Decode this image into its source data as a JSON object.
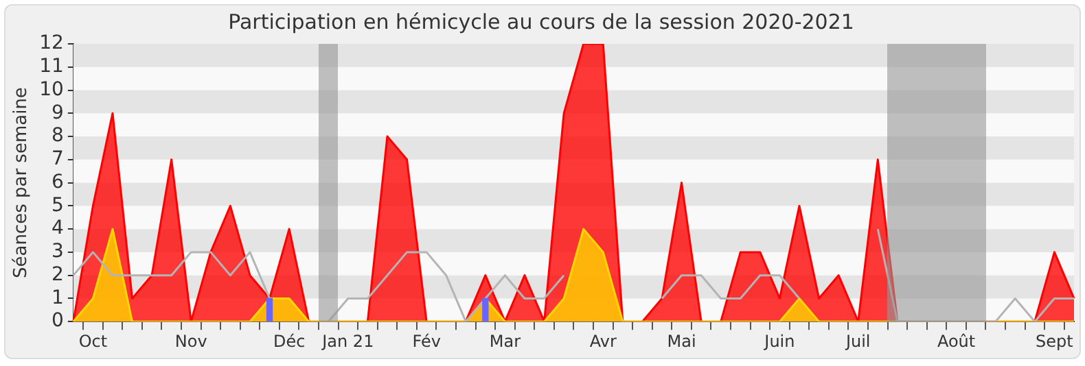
{
  "chart_data": {
    "type": "area",
    "title": "Participation en hémicycle au cours de la session 2020-2021",
    "ylabel": "Séances par semaine",
    "categories": [
      null,
      "Oct",
      null,
      null,
      null,
      null,
      "Nov",
      null,
      null,
      null,
      null,
      "Déc",
      null,
      null,
      "Jan 21",
      null,
      null,
      null,
      "Fév",
      null,
      null,
      null,
      "Mar",
      null,
      null,
      null,
      null,
      "Avr",
      null,
      null,
      null,
      "Mai",
      null,
      null,
      null,
      null,
      "Juin",
      null,
      null,
      null,
      "Juil",
      null,
      null,
      null,
      null,
      "Août",
      null,
      null,
      null,
      null,
      "Sept",
      null
    ],
    "ylim": [
      0,
      12
    ],
    "yticks": [
      0,
      1,
      2,
      3,
      4,
      5,
      6,
      7,
      8,
      9,
      10,
      11,
      12
    ],
    "legend": false,
    "series": [
      {
        "color": "#ff0000",
        "values": [
          0,
          5,
          9,
          1,
          2,
          7,
          0,
          3,
          5,
          2,
          1,
          4,
          0,
          0,
          0,
          0,
          8,
          7,
          0,
          0,
          0,
          2,
          0,
          2,
          0,
          9,
          12,
          12,
          0,
          0,
          1,
          6,
          0,
          0,
          3,
          3,
          1,
          5,
          1,
          2,
          0,
          7,
          0,
          0,
          0,
          0,
          0,
          0,
          0,
          0,
          3,
          1
        ]
      },
      {
        "color": "#ffd700",
        "values": [
          0,
          1,
          4,
          0,
          0,
          0,
          0,
          0,
          0,
          0,
          1,
          1,
          0,
          0,
          0,
          0,
          0,
          0,
          0,
          0,
          0,
          1,
          0,
          0,
          0,
          1,
          4,
          3,
          0,
          0,
          0,
          0,
          0,
          0,
          0,
          0,
          0,
          1,
          0,
          0,
          0,
          0,
          0,
          0,
          0,
          0,
          0,
          0,
          0,
          0,
          0,
          0
        ]
      },
      {
        "type": "line",
        "color": "#b4b4b4",
        "values": [
          2,
          3,
          2,
          2,
          2,
          2,
          3,
          3,
          2,
          3,
          1,
          null,
          null,
          0,
          1,
          1,
          2,
          3,
          3,
          2,
          0,
          1,
          2,
          1,
          1,
          2,
          null,
          null,
          null,
          null,
          1,
          2,
          2,
          1,
          1,
          2,
          2,
          1,
          null,
          null,
          null,
          4,
          0,
          0,
          0,
          0,
          0,
          0,
          1,
          0,
          1,
          1
        ]
      },
      {
        "type": "bar",
        "color": "#6666ff",
        "values": [
          null,
          null,
          null,
          null,
          null,
          null,
          null,
          null,
          null,
          null,
          1,
          null,
          null,
          null,
          null,
          null,
          null,
          null,
          null,
          null,
          null,
          1,
          null,
          null,
          null,
          null,
          null,
          null,
          null,
          null,
          null,
          null,
          null,
          null,
          null,
          null,
          null,
          null,
          null,
          null,
          null,
          null,
          null,
          null,
          null,
          null,
          null,
          null,
          null,
          null,
          null,
          null
        ]
      }
    ]
  }
}
